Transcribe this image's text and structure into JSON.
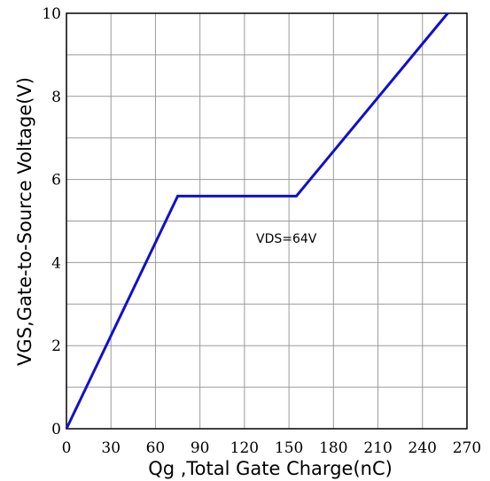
{
  "chart_data": {
    "type": "line",
    "xlabel": "Qg ,Total Gate Charge(nC)",
    "ylabel": "VGS,Gate-to-Source Voltage(V)",
    "xlim": [
      0,
      270
    ],
    "ylim": [
      0,
      10
    ],
    "x_ticks": [
      "0",
      "30",
      "60",
      "90",
      "120",
      "150",
      "180",
      "210",
      "240",
      "270"
    ],
    "y_ticks": [
      "0",
      "2",
      "4",
      "6",
      "8",
      "10"
    ],
    "grid": true,
    "annotation": "VDS=64V",
    "series": [
      {
        "color": "#1010cc",
        "x": [
          0,
          75,
          155,
          257
        ],
        "y": [
          0,
          5.6,
          5.6,
          10
        ]
      }
    ]
  }
}
